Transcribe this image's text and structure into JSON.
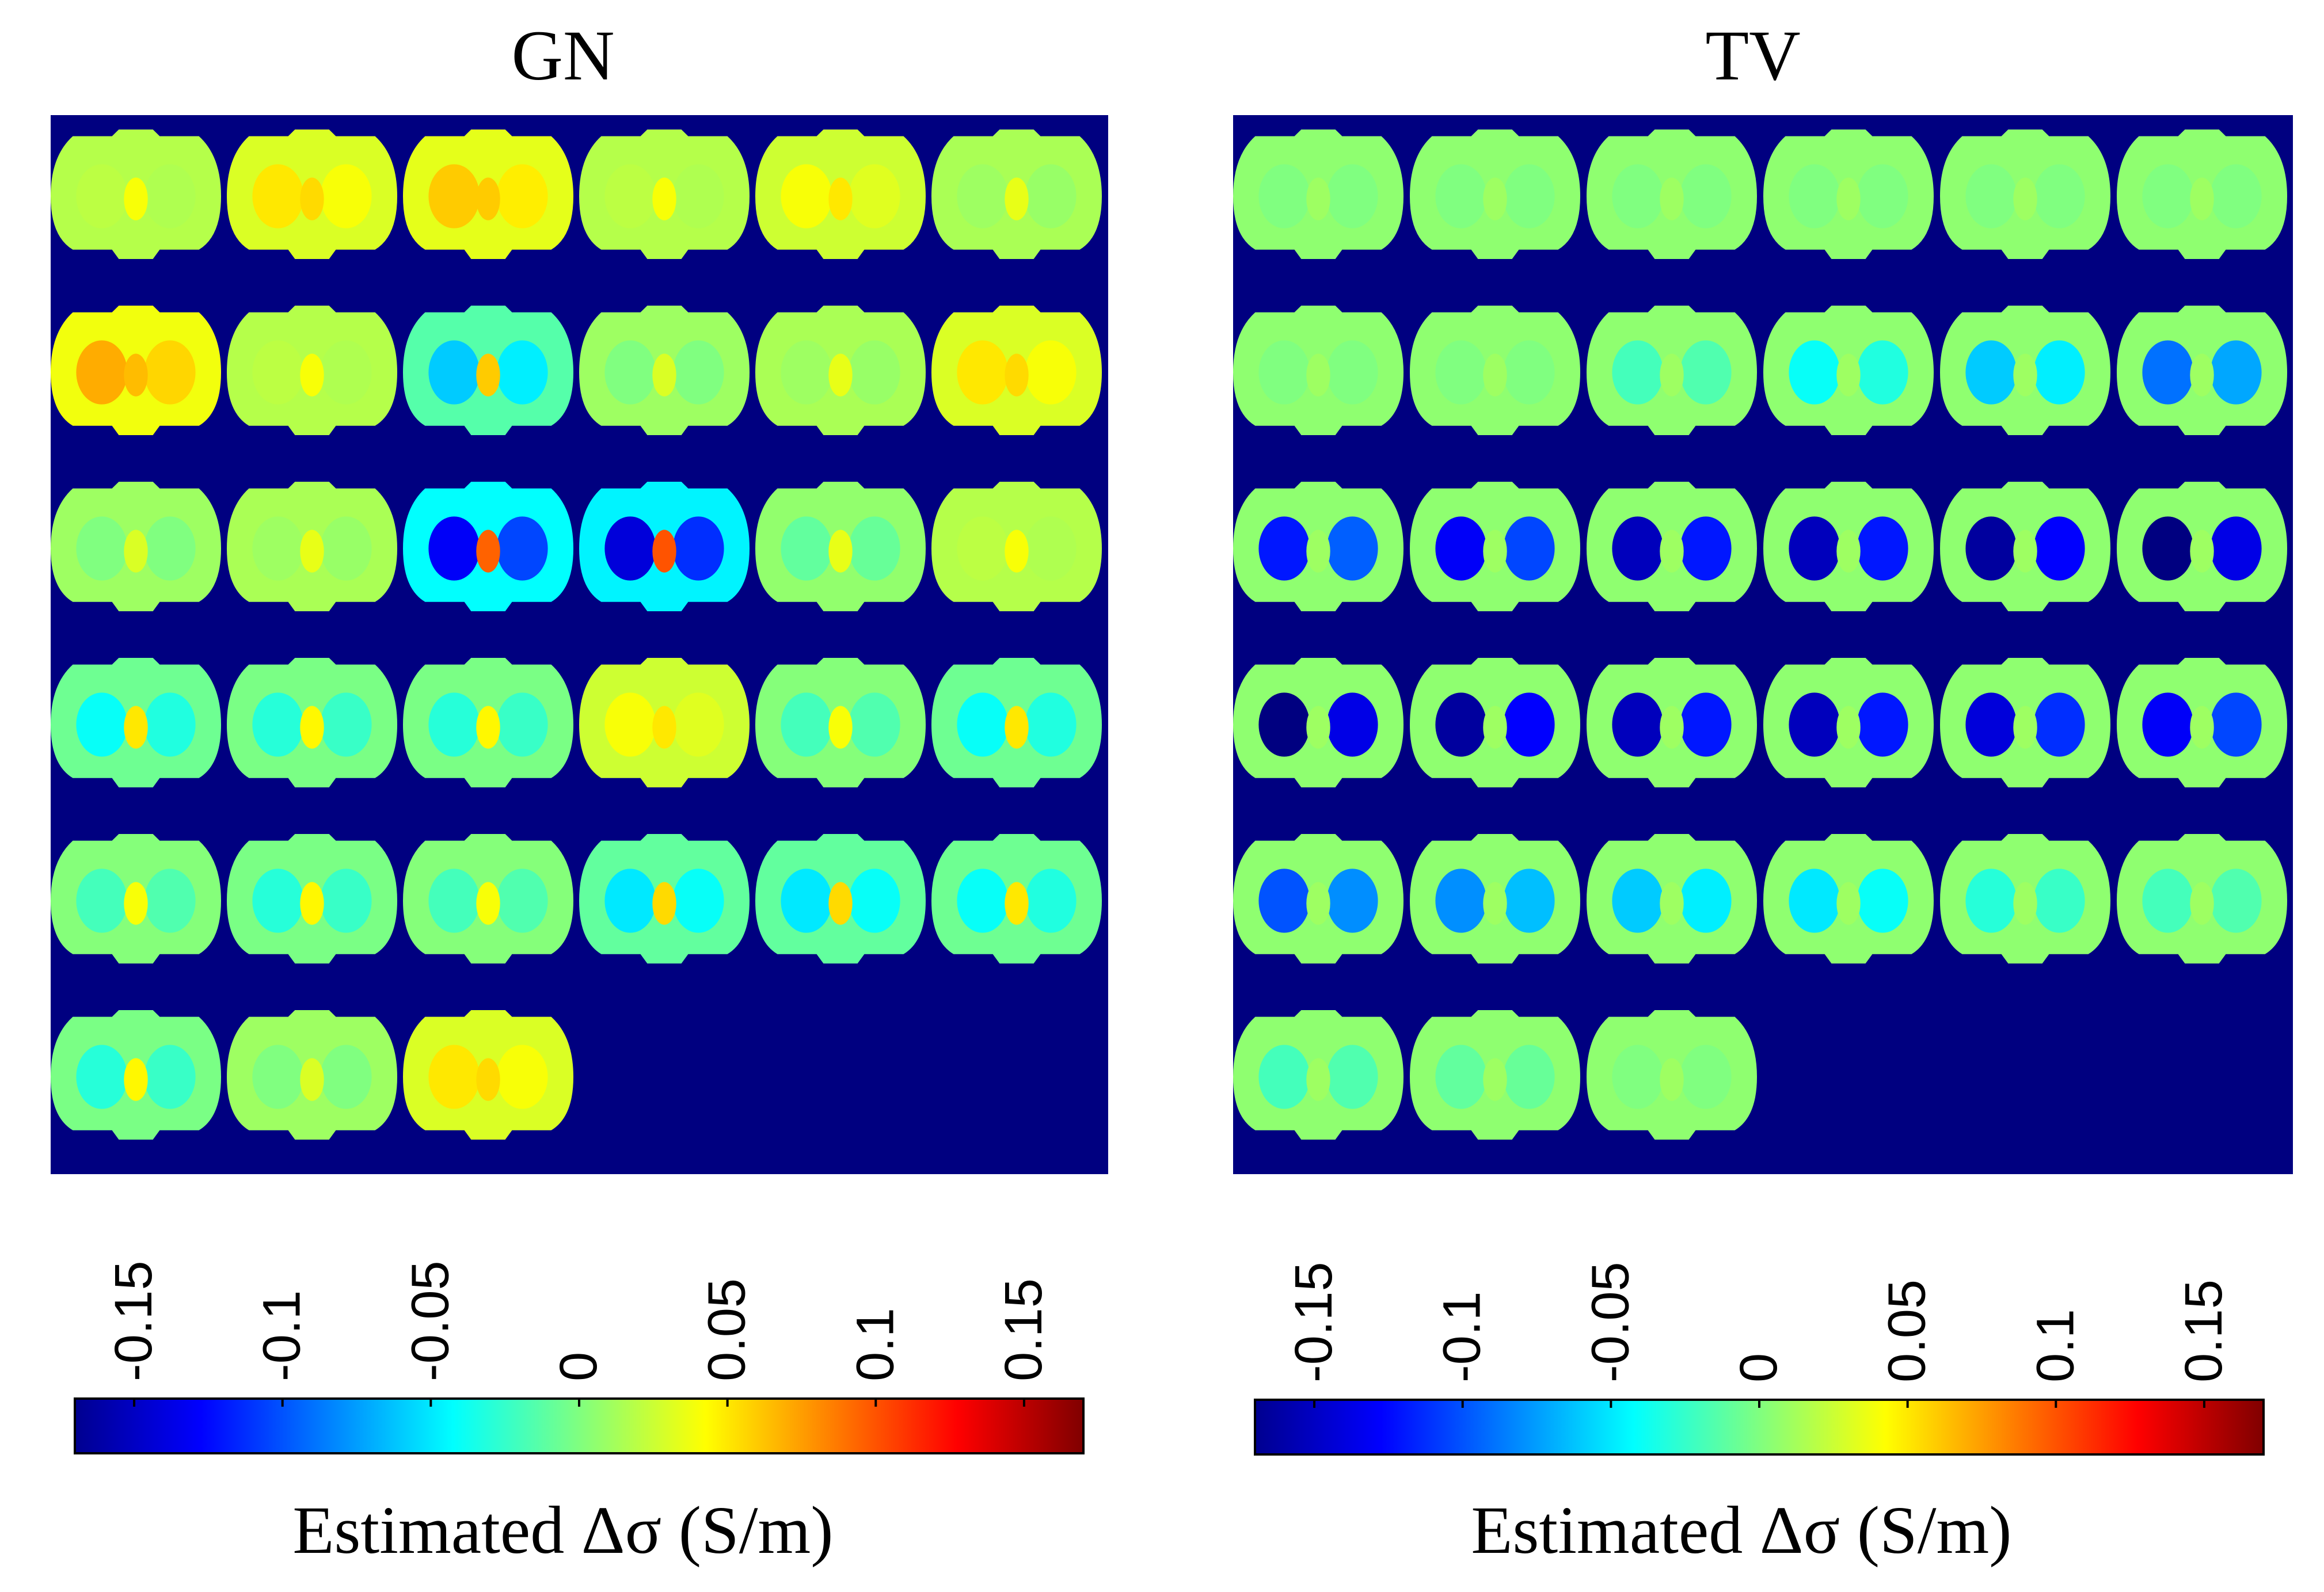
{
  "chart_data": {
    "type": "heatmap",
    "description_units": "S/m",
    "colormap": "jet",
    "value_range": [
      -0.17,
      0.17
    ],
    "panels": [
      {
        "title": "GN",
        "grid": {
          "rows": 6,
          "cols": 6,
          "n_frames": 33
        },
        "frame_levels": [
          0.02,
          0.05,
          0.06,
          0.02,
          0.04,
          0.01,
          0.07,
          0.02,
          -0.06,
          0.0,
          0.01,
          0.05,
          0.0,
          0.01,
          -0.13,
          -0.14,
          -0.01,
          0.02,
          -0.04,
          -0.03,
          -0.03,
          0.04,
          -0.02,
          -0.04,
          -0.02,
          -0.03,
          -0.02,
          -0.05,
          -0.05,
          -0.04,
          -0.03,
          0.0,
          0.05
        ],
        "colorbar": {
          "ticks": [
            -0.15,
            -0.1,
            -0.05,
            0,
            0.05,
            0.1,
            0.15
          ],
          "tick_labels": [
            "-0.15",
            "-0.1",
            "-0.05",
            "0",
            "0.05",
            "0.1",
            "0.15"
          ],
          "label": "Estimated Δσ (S/m)"
        }
      },
      {
        "title": "TV",
        "grid": {
          "rows": 6,
          "cols": 6,
          "n_frames": 33
        },
        "frame_levels": [
          0.0,
          0.0,
          0.0,
          0.0,
          0.0,
          0.0,
          0.0,
          0.0,
          -0.02,
          -0.04,
          -0.06,
          -0.09,
          -0.12,
          -0.13,
          -0.15,
          -0.15,
          -0.16,
          -0.17,
          -0.17,
          -0.16,
          -0.15,
          -0.15,
          -0.14,
          -0.13,
          -0.1,
          -0.08,
          -0.06,
          -0.05,
          -0.03,
          -0.02,
          -0.02,
          -0.01,
          0.0
        ],
        "colorbar": {
          "ticks": [
            -0.15,
            -0.1,
            -0.05,
            0,
            0.05,
            0.1,
            0.15
          ],
          "tick_labels": [
            "-0.15",
            "-0.1",
            "-0.05",
            "0",
            "0.05",
            "0.1",
            "0.15"
          ],
          "label": "Estimated Δσ (S/m)"
        }
      }
    ]
  }
}
